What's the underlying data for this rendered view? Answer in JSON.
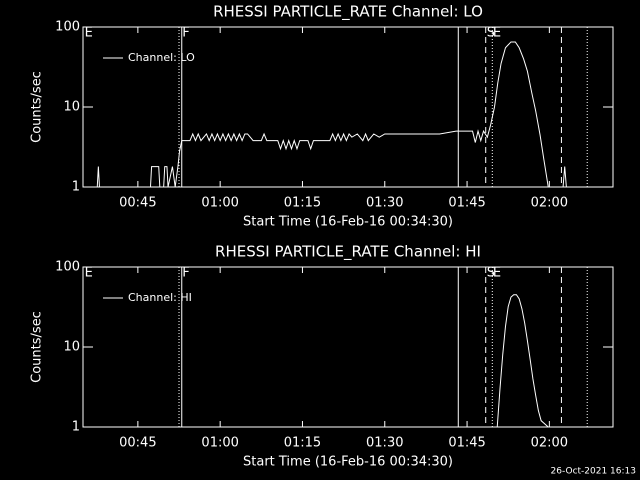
{
  "chart_data": [
    {
      "type": "line",
      "title": "RHESSI PARTICLE_RATE Channel: LO",
      "x_label": "Start Time (16-Feb-16 00:34:30)",
      "y_label": "Counts/sec",
      "xlim": [
        35,
        131.6
      ],
      "xticks": [
        {
          "value": 45,
          "label": "00:45"
        },
        {
          "value": 60,
          "label": "01:00"
        },
        {
          "value": 75,
          "label": "01:15"
        },
        {
          "value": 90,
          "label": "01:30"
        },
        {
          "value": 105,
          "label": "01:45"
        },
        {
          "value": 120,
          "label": "02:00"
        }
      ],
      "ylim": [
        1,
        100
      ],
      "yticks": [
        1,
        10,
        100
      ],
      "log_y": true,
      "legend": "upper left",
      "x": [
        35.5,
        37.6,
        37.8,
        38.0,
        47.3,
        47.5,
        48.8,
        49.0,
        49.7,
        49.9,
        50.3,
        50.5,
        51.3,
        51.8,
        52.3,
        52.6,
        53.0,
        54.5,
        55.0,
        55.5,
        56,
        56.5,
        57.5,
        58,
        58.5,
        59,
        59.5,
        60,
        60.5,
        61,
        61.5,
        62,
        62.5,
        63,
        63.5,
        64,
        64.5,
        65,
        66,
        67.5,
        68,
        68.5,
        70.5,
        71,
        71.5,
        72,
        72.5,
        73,
        73.5,
        74,
        74.5,
        76,
        76.5,
        77,
        80,
        80.5,
        81,
        81.5,
        82,
        82.5,
        83,
        83.5,
        84,
        85,
        86,
        86.5,
        87,
        88,
        89,
        90,
        92,
        95,
        100,
        103,
        106,
        106.5,
        107,
        107.5,
        108,
        108.7,
        109.3,
        110,
        110.6,
        111.2,
        112,
        113,
        113.8,
        114.5,
        115.3,
        116,
        116.8,
        117.5,
        118.3,
        119,
        119.8,
        122.5,
        122.8,
        123.1,
        131
      ],
      "series": [
        {
          "name": "Channel: LO",
          "color": "#ffffff",
          "values": [
            1,
            1,
            1.8,
            1,
            1,
            1.8,
            1.8,
            1,
            1,
            1.8,
            1.8,
            1,
            1.8,
            1,
            1.8,
            2.8,
            3.8,
            3.8,
            4.6,
            3.8,
            4.6,
            3.8,
            4.6,
            3.8,
            4.6,
            3.8,
            4.6,
            3.8,
            4.6,
            3.8,
            4.6,
            3.8,
            4.6,
            3.8,
            4.6,
            3.8,
            4.6,
            4.6,
            3.8,
            3.8,
            4.6,
            3.8,
            3.8,
            3,
            3.8,
            3,
            3.8,
            3,
            3.8,
            3,
            3.8,
            3.8,
            3,
            3.8,
            3.8,
            4.6,
            3.8,
            4.6,
            3.8,
            4.6,
            3.8,
            4.6,
            4.2,
            4.6,
            3.8,
            4.6,
            3.8,
            4.6,
            4.2,
            4.6,
            4.6,
            4.6,
            4.6,
            5,
            5,
            3.6,
            5,
            3.8,
            5,
            4.2,
            6,
            10,
            20,
            35,
            55,
            65,
            65,
            55,
            40,
            28,
            15,
            9,
            4.5,
            2.2,
            1,
            1,
            1.8,
            1,
            1
          ]
        }
      ],
      "markers": [
        {
          "x": 52.5,
          "style": "dotted"
        },
        {
          "x": 53.0,
          "style": "solid"
        },
        {
          "x": 103.4,
          "style": "solid"
        },
        {
          "x": 108.4,
          "style": "dashed"
        },
        {
          "x": 109.6,
          "style": "dotted"
        },
        {
          "x": 122.2,
          "style": "dashed"
        },
        {
          "x": 126.9,
          "style": "dotted"
        }
      ],
      "flags": [
        {
          "x": 35.3,
          "label": "E"
        },
        {
          "x": 53.1,
          "label": "F"
        },
        {
          "x": 108.6,
          "label": "S"
        },
        {
          "x": 109.7,
          "label": "E"
        }
      ]
    },
    {
      "type": "line",
      "title": "RHESSI PARTICLE_RATE Channel: HI",
      "x_label": "Start Time (16-Feb-16 00:34:30)",
      "y_label": "Counts/sec",
      "xlim": [
        35,
        131.6
      ],
      "xticks": [
        {
          "value": 45,
          "label": "00:45"
        },
        {
          "value": 60,
          "label": "01:00"
        },
        {
          "value": 75,
          "label": "01:15"
        },
        {
          "value": 90,
          "label": "01:30"
        },
        {
          "value": 105,
          "label": "01:45"
        },
        {
          "value": 120,
          "label": "02:00"
        }
      ],
      "ylim": [
        1,
        100
      ],
      "yticks": [
        1,
        10,
        100
      ],
      "log_y": true,
      "legend": "upper left",
      "x": [
        110.5,
        111,
        111.5,
        112,
        112.5,
        113,
        113.5,
        114,
        114.5,
        115,
        115.5,
        116,
        116.5,
        117,
        117.5,
        118,
        118.5,
        119.8
      ],
      "series": [
        {
          "name": "Channel: HI",
          "color": "#ffffff",
          "values": [
            1,
            3,
            8,
            18,
            32,
            42,
            45,
            45,
            40,
            30,
            20,
            12,
            7,
            4,
            2.5,
            1.6,
            1.2,
            1
          ]
        }
      ],
      "markers": [
        {
          "x": 52.5,
          "style": "dotted"
        },
        {
          "x": 53.0,
          "style": "solid"
        },
        {
          "x": 103.4,
          "style": "solid"
        },
        {
          "x": 108.4,
          "style": "dashed"
        },
        {
          "x": 109.6,
          "style": "dotted"
        },
        {
          "x": 122.2,
          "style": "dashed"
        },
        {
          "x": 126.9,
          "style": "dotted"
        }
      ],
      "flags": [
        {
          "x": 35.3,
          "label": "E"
        },
        {
          "x": 53.1,
          "label": "F"
        },
        {
          "x": 108.6,
          "label": "S"
        },
        {
          "x": 109.7,
          "label": "E"
        }
      ]
    }
  ],
  "footer": "26-Oct-2021 16:13"
}
